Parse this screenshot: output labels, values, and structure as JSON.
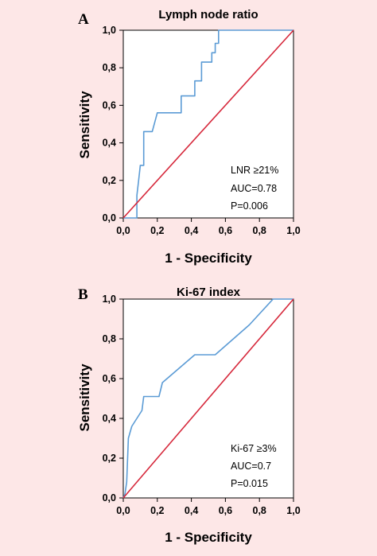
{
  "chart_data": [
    {
      "type": "line",
      "panel_letter": "A",
      "title": "Lymph node ratio",
      "xlabel": "1 - Specificity",
      "ylabel": "Sensitivity",
      "xlim": [
        0,
        1
      ],
      "ylim": [
        0,
        1
      ],
      "x_ticks": [
        "0,0",
        "0,2",
        "0,4",
        "0,6",
        "0,8",
        "1,0"
      ],
      "y_ticks": [
        "0,0",
        "0,2",
        "0,4",
        "0,6",
        "0,8",
        "1,0"
      ],
      "grid": false,
      "series": [
        {
          "color": "#5b9bd5",
          "x": [
            0.0,
            0.08,
            0.08,
            0.09,
            0.1,
            0.1,
            0.12,
            0.12,
            0.17,
            0.2,
            0.34,
            0.34,
            0.42,
            0.42,
            0.46,
            0.46,
            0.52,
            0.52,
            0.54,
            0.54,
            0.56,
            0.56,
            1.0
          ],
          "y": [
            0.0,
            0.0,
            0.12,
            0.2,
            0.28,
            0.28,
            0.28,
            0.46,
            0.46,
            0.56,
            0.56,
            0.65,
            0.65,
            0.73,
            0.73,
            0.83,
            0.83,
            0.88,
            0.88,
            0.93,
            0.93,
            1.0,
            1.0
          ]
        },
        {
          "color": "#d6283b",
          "x": [
            0,
            1
          ],
          "y": [
            0,
            1
          ]
        }
      ],
      "annotations": [
        "LNR ≥21%",
        "AUC=0.78",
        "P=0.006"
      ]
    },
    {
      "type": "line",
      "panel_letter": "B",
      "title": "Ki-67 index",
      "xlabel": "1 - Specificity",
      "ylabel": "Sensitivity",
      "xlim": [
        0,
        1
      ],
      "ylim": [
        0,
        1
      ],
      "x_ticks": [
        "0,0",
        "0,2",
        "0,4",
        "0,6",
        "0,8",
        "1,0"
      ],
      "y_ticks": [
        "0,0",
        "0,2",
        "0,4",
        "0,6",
        "0,8",
        "1,0"
      ],
      "grid": false,
      "series": [
        {
          "color": "#5b9bd5",
          "x": [
            0.0,
            0.01,
            0.02,
            0.02,
            0.03,
            0.05,
            0.08,
            0.11,
            0.12,
            0.21,
            0.23,
            0.42,
            0.54,
            0.74,
            0.88,
            1.0
          ],
          "y": [
            0.0,
            0.02,
            0.08,
            0.08,
            0.3,
            0.36,
            0.4,
            0.44,
            0.51,
            0.51,
            0.58,
            0.72,
            0.72,
            0.87,
            1.0,
            1.0
          ]
        },
        {
          "color": "#d6283b",
          "x": [
            0,
            1
          ],
          "y": [
            0,
            1
          ]
        }
      ],
      "annotations": [
        "Ki-67 ≥3%",
        "AUC=0.7",
        "P=0.015"
      ]
    }
  ]
}
